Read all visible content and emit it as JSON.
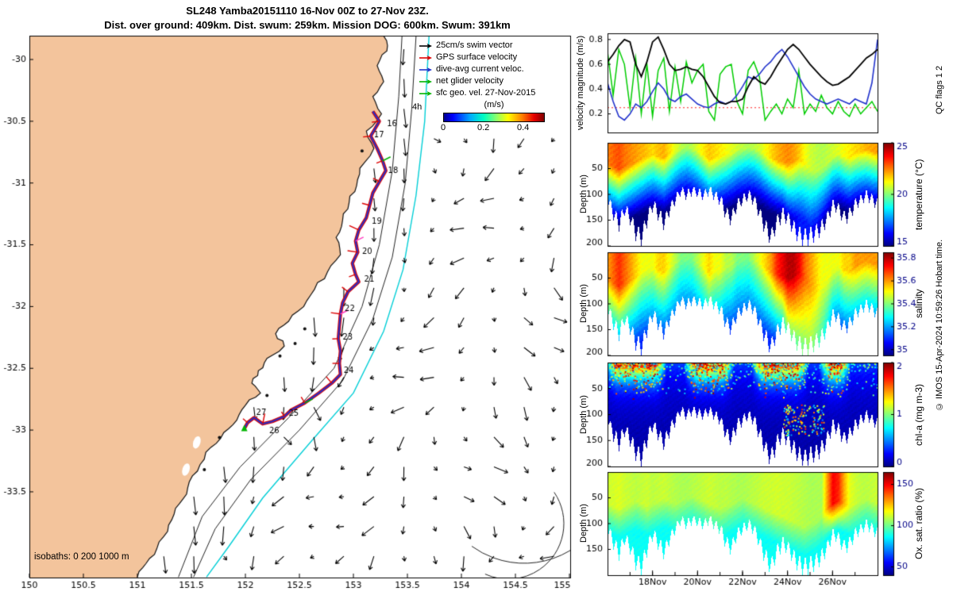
{
  "title": "SL248 Yamba20151110 16-Nov 00Z to 27-Nov 23Z.",
  "subtitle": "Dist. over ground: 409km. Dist. swum: 259km. Mission DOG: 600km. Swum: 391km",
  "right_margin": {
    "qc": "QC flags 1 2",
    "copyright": "© IMOS 15-Apr-2024 10:59:26 Hobart time."
  },
  "time_axis": {
    "labels": [
      "18Nov",
      "20Nov",
      "22Nov",
      "24Nov",
      "26Nov"
    ],
    "days": [
      18,
      20,
      22,
      24,
      26
    ],
    "range": [
      16,
      28
    ]
  },
  "dive_depth": [
    120,
    150,
    170,
    140,
    160,
    190,
    200,
    160,
    130,
    150,
    170,
    140,
    120,
    100,
    110,
    100,
    105,
    110,
    100,
    110,
    120,
    150,
    160,
    130,
    120,
    110,
    120,
    150,
    180,
    200,
    170,
    150,
    160,
    180,
    195,
    200,
    195,
    190,
    180,
    160,
    130,
    140,
    160,
    150,
    130,
    120,
    110,
    120,
    130
  ],
  "map": {
    "xticks": [
      150,
      150.5,
      151,
      151.5,
      152,
      152.5,
      153,
      153.5,
      154,
      154.5,
      155
    ],
    "yticks": [
      -30,
      -30.5,
      -31,
      -31.5,
      -32,
      -32.5,
      -33,
      -33.5
    ],
    "land_color": "#f3c49c",
    "isobath_note": "isobaths: 0  200  1000 m",
    "legend": {
      "items": [
        {
          "label": "25cm/s swim vector",
          "color": "#000000"
        },
        {
          "label": "GPS surface velocity",
          "color": "#e00000"
        },
        {
          "label": "dive-avg current veloc.",
          "color": "#2233cc"
        },
        {
          "label": "net glider velocity",
          "color": "#00b400"
        },
        {
          "label": "sfc geo. vel. 27-Nov-2015",
          "color": "#00b400"
        }
      ],
      "duration_label": "4h",
      "colorbar_label": "(m/s)",
      "colorbar_ticks": [
        "0",
        "0.2",
        "0.4"
      ]
    },
    "coast": [
      [
        153.28,
        -29.81
      ],
      [
        153.31,
        -29.93
      ],
      [
        153.22,
        -30.05
      ],
      [
        153.28,
        -30.18
      ],
      [
        153.18,
        -30.3
      ],
      [
        153.26,
        -30.44
      ],
      [
        153.12,
        -30.58
      ],
      [
        153.19,
        -30.72
      ],
      [
        153.06,
        -30.88
      ],
      [
        153.03,
        -31.02
      ],
      [
        152.96,
        -31.16
      ],
      [
        152.9,
        -31.3
      ],
      [
        152.84,
        -31.44
      ],
      [
        152.88,
        -31.58
      ],
      [
        152.76,
        -31.72
      ],
      [
        152.64,
        -31.86
      ],
      [
        152.54,
        -32.0
      ],
      [
        152.4,
        -32.12
      ],
      [
        152.28,
        -32.22
      ],
      [
        152.36,
        -32.32
      ],
      [
        152.2,
        -32.42
      ],
      [
        152.12,
        -32.52
      ],
      [
        152.06,
        -32.62
      ],
      [
        152.14,
        -32.7
      ],
      [
        152.0,
        -32.8
      ],
      [
        151.92,
        -32.92
      ],
      [
        151.8,
        -33.02
      ],
      [
        151.68,
        -33.14
      ],
      [
        151.58,
        -33.28
      ],
      [
        151.48,
        -33.42
      ],
      [
        151.42,
        -33.56
      ],
      [
        151.34,
        -33.68
      ],
      [
        151.28,
        -33.82
      ],
      [
        151.18,
        -33.96
      ],
      [
        151.08,
        -34.08
      ],
      [
        151.0,
        -34.19
      ]
    ],
    "islets": [
      [
        152.32,
        -32.4
      ],
      [
        152.55,
        -32.18
      ],
      [
        153.08,
        -30.74
      ],
      [
        151.76,
        -33.06
      ],
      [
        152.2,
        -32.72
      ],
      [
        151.62,
        -33.32
      ],
      [
        152.46,
        -32.3
      ]
    ],
    "lakes": [
      [
        152.45,
        -32.25
      ],
      [
        152.3,
        -32.52
      ],
      [
        151.55,
        -33.1
      ],
      [
        151.45,
        -33.32
      ]
    ],
    "isobath200": [
      [
        153.45,
        -29.81
      ],
      [
        153.42,
        -30.3
      ],
      [
        153.36,
        -30.9
      ],
      [
        153.24,
        -31.5
      ],
      [
        153.08,
        -32.0
      ],
      [
        152.82,
        -32.5
      ],
      [
        152.4,
        -32.9
      ],
      [
        151.95,
        -33.3
      ],
      [
        151.6,
        -33.7
      ],
      [
        151.38,
        -34.19
      ]
    ],
    "isobath1000": [
      [
        153.58,
        -29.81
      ],
      [
        153.54,
        -30.4
      ],
      [
        153.48,
        -31.0
      ],
      [
        153.36,
        -31.6
      ],
      [
        153.18,
        -32.1
      ],
      [
        152.9,
        -32.6
      ],
      [
        152.5,
        -33.0
      ],
      [
        152.05,
        -33.4
      ],
      [
        151.72,
        -33.8
      ],
      [
        151.52,
        -34.19
      ]
    ],
    "cyan_line": [
      [
        153.7,
        -29.81
      ],
      [
        153.66,
        -30.5
      ],
      [
        153.58,
        -31.1
      ],
      [
        153.46,
        -31.7
      ],
      [
        153.28,
        -32.2
      ],
      [
        153.0,
        -32.7
      ],
      [
        152.6,
        -33.1
      ],
      [
        152.16,
        -33.55
      ],
      [
        151.84,
        -33.95
      ],
      [
        151.64,
        -34.19
      ]
    ],
    "track": [
      [
        153.18,
        -30.42
      ],
      [
        153.24,
        -30.5
      ],
      [
        153.2,
        -30.56
      ],
      [
        153.16,
        -30.62
      ],
      [
        153.22,
        -30.72
      ],
      [
        153.27,
        -30.82
      ],
      [
        153.3,
        -30.9
      ],
      [
        153.24,
        -30.99
      ],
      [
        153.18,
        -31.08
      ],
      [
        153.15,
        -31.18
      ],
      [
        153.12,
        -31.28
      ],
      [
        153.05,
        -31.38
      ],
      [
        153.02,
        -31.47
      ],
      [
        153.04,
        -31.56
      ],
      [
        152.99,
        -31.65
      ],
      [
        153.02,
        -31.74
      ],
      [
        153.05,
        -31.8
      ],
      [
        152.95,
        -31.88
      ],
      [
        152.9,
        -31.97
      ],
      [
        152.88,
        -32.06
      ],
      [
        152.87,
        -32.16
      ],
      [
        152.86,
        -32.26
      ],
      [
        152.88,
        -32.36
      ],
      [
        152.87,
        -32.46
      ],
      [
        152.88,
        -32.55
      ],
      [
        152.8,
        -32.62
      ],
      [
        152.68,
        -32.7
      ],
      [
        152.55,
        -32.78
      ],
      [
        152.42,
        -32.84
      ],
      [
        152.36,
        -32.89
      ],
      [
        152.25,
        -32.93
      ],
      [
        152.16,
        -32.95
      ],
      [
        152.08,
        -32.9
      ],
      [
        152.02,
        -32.94
      ],
      [
        151.99,
        -32.99
      ]
    ],
    "track_labels": [
      {
        "t": "16",
        "lon": 153.31,
        "lat": -30.52
      },
      {
        "t": "17",
        "lon": 153.19,
        "lat": -30.61
      },
      {
        "t": "18",
        "lon": 153.32,
        "lat": -30.9
      },
      {
        "t": "19",
        "lon": 153.17,
        "lat": -31.31
      },
      {
        "t": "20",
        "lon": 153.08,
        "lat": -31.56
      },
      {
        "t": "21",
        "lon": 153.1,
        "lat": -31.78
      },
      {
        "t": "22",
        "lon": 152.92,
        "lat": -32.02
      },
      {
        "t": "23",
        "lon": 152.9,
        "lat": -32.25
      },
      {
        "t": "24",
        "lon": 152.91,
        "lat": -32.52
      },
      {
        "t": "25",
        "lon": 152.4,
        "lat": -32.87
      },
      {
        "t": "26",
        "lon": 152.22,
        "lat": -33.01
      },
      {
        "t": "27",
        "lon": 152.1,
        "lat": -32.86
      }
    ]
  },
  "chart_data": [
    {
      "id": "velocity",
      "type": "line",
      "ylabel": "velocity magnitude (m/s)",
      "ylim": [
        0.05,
        0.85
      ],
      "yticks": [
        0.2,
        0.4,
        0.6,
        0.8
      ],
      "x_start": 16,
      "x_step": 0.25,
      "series": [
        {
          "name": "GPS surface velocity",
          "color": "#000000",
          "values": [
            0.62,
            0.68,
            0.75,
            0.8,
            0.78,
            0.6,
            0.5,
            0.62,
            0.78,
            0.82,
            0.72,
            0.6,
            0.55,
            0.56,
            0.58,
            0.56,
            0.55,
            0.5,
            0.42,
            0.34,
            0.29,
            0.28,
            0.3,
            0.3,
            0.32,
            0.42,
            0.5,
            0.46,
            0.44,
            0.5,
            0.58,
            0.65,
            0.72,
            0.76,
            0.72,
            0.66,
            0.6,
            0.55,
            0.5,
            0.46,
            0.43,
            0.44,
            0.47,
            0.5,
            0.55,
            0.6,
            0.65,
            0.68,
            0.72
          ]
        },
        {
          "name": "dive-avg current veloc.",
          "color": "#2233cc",
          "values": [
            0.45,
            0.3,
            0.18,
            0.15,
            0.2,
            0.28,
            0.25,
            0.3,
            0.38,
            0.45,
            0.4,
            0.32,
            0.3,
            0.34,
            0.36,
            0.32,
            0.28,
            0.26,
            0.25,
            0.28,
            0.3,
            0.28,
            0.3,
            0.35,
            0.42,
            0.5,
            0.48,
            0.52,
            0.58,
            0.62,
            0.68,
            0.72,
            0.66,
            0.58,
            0.5,
            0.42,
            0.36,
            0.32,
            0.3,
            0.28,
            0.3,
            0.32,
            0.3,
            0.28,
            0.32,
            0.3,
            0.28,
            0.45,
            0.8
          ]
        },
        {
          "name": "net glider velocity",
          "color": "#00cc00",
          "values": [
            0.7,
            0.35,
            0.72,
            0.6,
            0.25,
            0.65,
            0.2,
            0.6,
            0.18,
            0.55,
            0.65,
            0.22,
            0.58,
            0.3,
            0.62,
            0.45,
            0.55,
            0.6,
            0.22,
            0.15,
            0.52,
            0.58,
            0.6,
            0.3,
            0.2,
            0.55,
            0.62,
            0.5,
            0.15,
            0.22,
            0.28,
            0.2,
            0.32,
            0.25,
            0.55,
            0.2,
            0.28,
            0.22,
            0.35,
            0.25,
            0.2,
            0.3,
            0.22,
            0.18,
            0.28,
            0.2,
            0.25,
            0.3,
            0.22
          ]
        },
        {
          "name": "25cm/s swim reference",
          "color": "#ff2222",
          "style": "dotted",
          "value": 0.25
        }
      ]
    },
    {
      "id": "temperature",
      "type": "heatmap",
      "ylabel": "Depth (m)",
      "clabel": "temperature (°C)",
      "crange": [
        15,
        25
      ],
      "cticks": [
        15,
        20,
        25
      ],
      "depth_ticks": [
        50,
        100,
        150,
        200
      ],
      "depth_range": [
        0,
        200
      ],
      "surface": [
        22.5,
        22.8,
        23.0,
        22.6,
        22.4,
        22.2,
        22.0,
        21.8,
        21.6,
        21.9,
        22.0,
        21.5,
        21.0,
        20.6,
        20.4,
        20.6,
        21.0,
        21.4,
        21.8,
        21.6,
        21.4,
        21.2,
        21.0,
        20.8,
        20.6,
        20.5,
        20.6,
        20.8,
        21.2,
        21.6,
        22.0,
        22.2,
        22.4,
        22.2,
        21.8,
        21.2,
        20.8,
        20.6,
        20.5,
        20.6,
        20.8,
        21.0,
        21.2,
        21.4,
        21.6,
        21.8,
        22.0,
        22.1,
        22.2
      ],
      "mld": [
        40,
        45,
        50,
        45,
        40,
        35,
        30,
        25,
        22,
        25,
        28,
        22,
        15,
        10,
        8,
        10,
        15,
        22,
        30,
        28,
        25,
        22,
        18,
        12,
        10,
        8,
        10,
        15,
        22,
        28,
        32,
        35,
        38,
        35,
        30,
        40,
        50,
        55,
        50,
        40,
        25,
        20,
        25,
        28,
        20,
        15,
        12,
        15,
        18
      ],
      "deep": [
        14.8,
        14.8,
        14.8,
        14.8,
        14.8,
        14.8,
        14.8,
        14.8,
        14.8,
        14.8,
        14.8,
        14.8,
        14.8,
        14.8,
        14.8,
        14.8,
        14.8,
        14.8,
        14.8,
        14.8,
        14.8,
        14.8,
        14.8,
        14.8,
        14.8,
        14.8,
        14.8,
        14.8,
        14.8,
        14.8,
        14.8,
        14.8,
        15.5,
        16.0,
        16.5,
        16.5,
        16.5,
        16.0,
        15.5,
        15.0,
        14.8,
        14.8,
        14.8,
        14.8,
        14.8,
        14.8,
        14.8,
        14.8,
        14.8
      ]
    },
    {
      "id": "salinity",
      "type": "heatmap",
      "ylabel": "Depth (m)",
      "clabel": "salinity",
      "crange": [
        34.95,
        35.85
      ],
      "cticks": [
        35,
        35.2,
        35.4,
        35.6,
        35.8
      ],
      "depth_ticks": [
        50,
        100,
        150,
        200
      ],
      "depth_range": [
        0,
        200
      ],
      "surface": [
        35.6,
        35.65,
        35.7,
        35.65,
        35.6,
        35.55,
        35.5,
        35.5,
        35.5,
        35.55,
        35.55,
        35.5,
        35.45,
        35.4,
        35.4,
        35.4,
        35.45,
        35.5,
        35.55,
        35.5,
        35.5,
        35.45,
        35.45,
        35.4,
        35.4,
        35.4,
        35.45,
        35.5,
        35.55,
        35.6,
        35.7,
        35.75,
        35.8,
        35.8,
        35.75,
        35.65,
        35.6,
        35.55,
        35.5,
        35.5,
        35.5,
        35.5,
        35.55,
        35.55,
        35.6,
        35.6,
        35.6,
        35.6,
        35.6
      ],
      "deep": [
        35.1,
        35.1,
        35.1,
        35.1,
        35.1,
        35.1,
        35.1,
        35.1,
        35.1,
        35.1,
        35.1,
        35.1,
        35.1,
        35.1,
        35.1,
        35.1,
        35.1,
        35.1,
        35.1,
        35.1,
        35.1,
        35.1,
        35.1,
        35.1,
        35.1,
        35.1,
        35.1,
        35.1,
        35.1,
        35.1,
        35.1,
        35.1,
        35.3,
        35.35,
        35.4,
        35.4,
        35.4,
        35.35,
        35.3,
        35.2,
        35.1,
        35.1,
        35.1,
        35.1,
        35.1,
        35.1,
        35.1,
        35.1,
        35.1
      ]
    },
    {
      "id": "chl",
      "type": "heatmap",
      "ylabel": "Depth (m)",
      "clabel": "chl-a (mg m-3)",
      "crange": [
        0,
        2
      ],
      "cticks": [
        0,
        1,
        2
      ],
      "depth_ticks": [
        50,
        100,
        150,
        200
      ],
      "depth_range": [
        0,
        200
      ],
      "bloom_windows": [
        [
          16.2,
          18.3
        ],
        [
          19.7,
          21.3
        ],
        [
          22.7,
          24.6
        ],
        [
          25.7,
          26.5
        ]
      ]
    },
    {
      "id": "oxygen",
      "type": "heatmap",
      "ylabel": "Depth (m)",
      "clabel": "Ox. sat. ratio (%)",
      "crange": [
        40,
        165
      ],
      "cticks": [
        50,
        100,
        150
      ],
      "depth_ticks": [
        50,
        100,
        150
      ],
      "depth_range": [
        0,
        200
      ],
      "surface": [
        112,
        113,
        114,
        112,
        111,
        110,
        111,
        112,
        110,
        111,
        112,
        110,
        109,
        108,
        108,
        109,
        110,
        111,
        112,
        111,
        110,
        110,
        109,
        108,
        108,
        109,
        110,
        111,
        112,
        112,
        113,
        112,
        112,
        111,
        110,
        109,
        108,
        108,
        108,
        130,
        150,
        145,
        128,
        115,
        112,
        110,
        110,
        111,
        112
      ],
      "mld": [
        60,
        65,
        70,
        65,
        60,
        55,
        60,
        65,
        60,
        55,
        50,
        55,
        60,
        55,
        50,
        45,
        50,
        55,
        60,
        65,
        70,
        65,
        60,
        55,
        50,
        55,
        60,
        65,
        70,
        75,
        80,
        85,
        90,
        95,
        100,
        105,
        100,
        95,
        85,
        70,
        60,
        55,
        60,
        65,
        60,
        55,
        50,
        55,
        60
      ],
      "deep": 88
    }
  ]
}
